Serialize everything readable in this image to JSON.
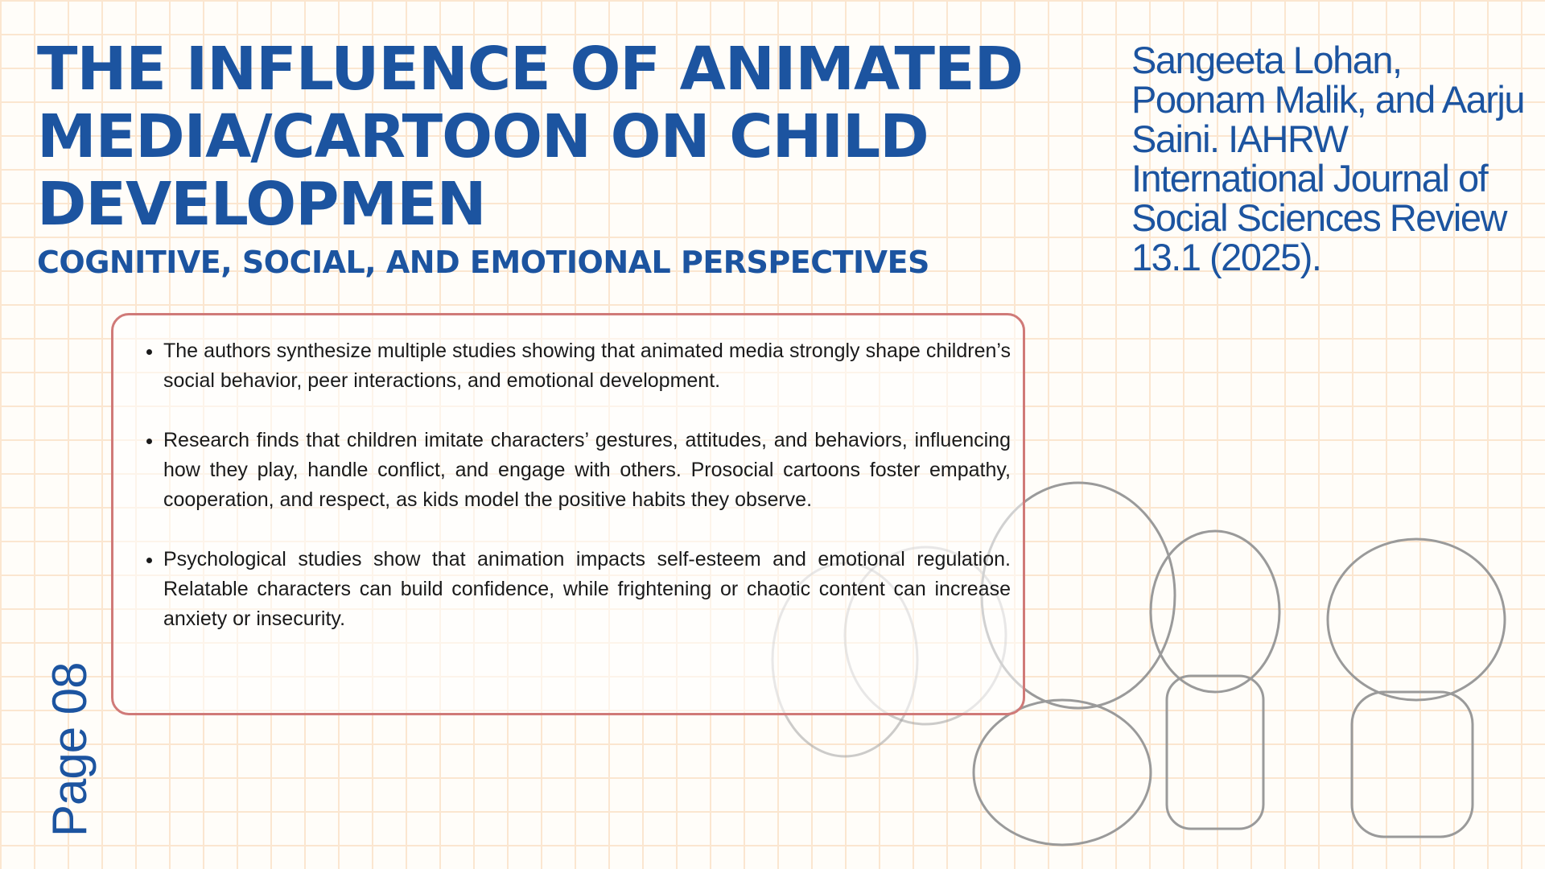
{
  "header": {
    "title": "THE INFLUENCE OF ANIMATED MEDIA/CARTOON ON CHILD DEVELOPMEN",
    "subtitle": "COGNITIVE, SOCIAL, AND EMOTIONAL PERSPECTIVES"
  },
  "citation": "Sangeeta Lohan, Poonam Malik, and Aarju Saini. IAHRW International Journal of Social Sciences Review 13.1 (2025).",
  "bullets": [
    "The authors synthesize multiple studies showing that animated media strongly shape children’s social behavior, peer interactions, and emotional development.",
    "Research finds that children imitate characters’ gestures, attitudes, and behaviors, influencing how they play, handle conflict, and engage with others. Prosocial cartoons foster empathy, cooperation, and respect, as kids model the positive habits they observe.",
    "Psychological studies show that animation impacts self-esteem and emotional regulation. Relatable characters can build confidence, while frightening or chaotic content can increase anxiety or insecurity."
  ],
  "page_label": "Page 08"
}
